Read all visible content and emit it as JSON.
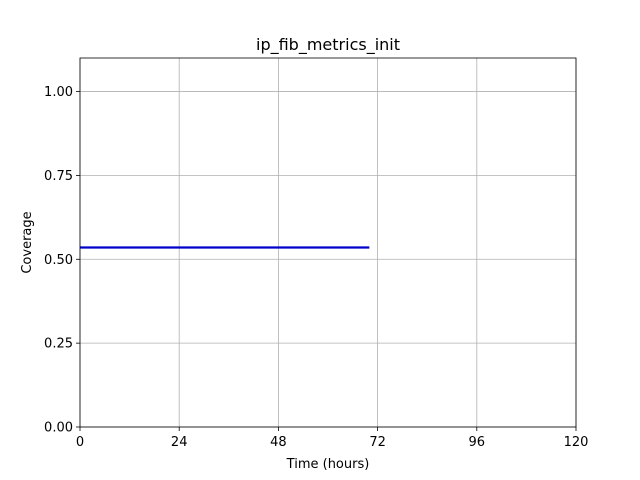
{
  "chart_data": {
    "type": "line",
    "title": "ip_fib_metrics_init",
    "xlabel": "Time (hours)",
    "ylabel": "Coverage",
    "xlim": [
      0,
      120
    ],
    "ylim": [
      0,
      1.1
    ],
    "xticks": [
      0,
      24,
      48,
      72,
      96,
      120
    ],
    "xtick_labels": [
      "0",
      "24",
      "48",
      "72",
      "96",
      "120"
    ],
    "yticks": [
      0,
      0.25,
      0.5,
      0.75,
      1.0
    ],
    "ytick_labels": [
      "0.00",
      "0.25",
      "0.50",
      "0.75",
      "1.00"
    ],
    "grid": true,
    "series": [
      {
        "color": "#0000cc",
        "x": [
          0,
          70
        ],
        "y": [
          0.535,
          0.535
        ]
      }
    ]
  }
}
